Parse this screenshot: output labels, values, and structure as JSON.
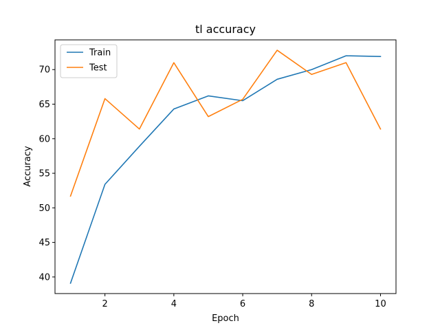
{
  "chart_data": {
    "type": "line",
    "title": "tl accuracy",
    "xlabel": "Epoch",
    "ylabel": "Accuracy",
    "x": [
      1,
      2,
      3,
      4,
      5,
      6,
      7,
      8,
      9,
      10
    ],
    "xlim": [
      0.55,
      10.45
    ],
    "ylim": [
      37.6,
      74.3
    ],
    "xticks": [
      2,
      4,
      6,
      8,
      10
    ],
    "yticks": [
      40,
      45,
      50,
      55,
      60,
      65,
      70
    ],
    "grid": false,
    "legend": "top-left",
    "series": [
      {
        "name": "Train",
        "color": "#1f77b4",
        "values": [
          39.1,
          53.4,
          58.9,
          64.3,
          66.2,
          65.5,
          68.6,
          70.0,
          72.0,
          71.9
        ]
      },
      {
        "name": "Test",
        "color": "#ff7f0e",
        "values": [
          51.7,
          65.8,
          61.4,
          71.0,
          63.2,
          65.7,
          72.8,
          69.3,
          71.0,
          61.4
        ]
      }
    ]
  }
}
